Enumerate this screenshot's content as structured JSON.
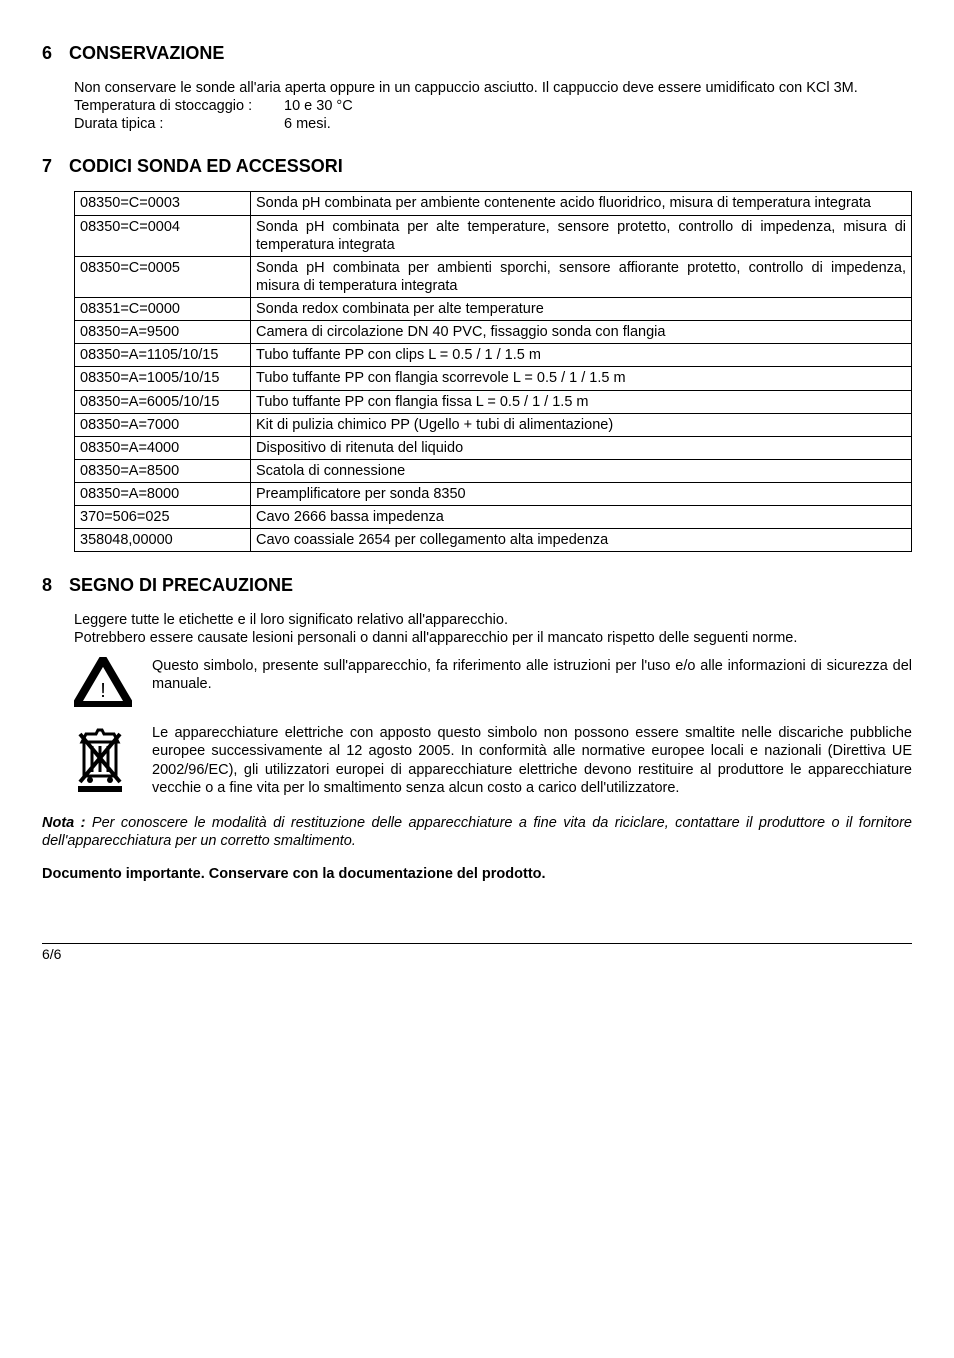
{
  "sections": {
    "s6": {
      "num": "6",
      "title": "CONSERVAZIONE",
      "intro": "Non conservare le sonde all'aria aperta oppure in un cappuccio asciutto. Il cappuccio deve essere umidificato con KCl 3M.",
      "rows": [
        {
          "label": "Temperatura di stoccaggio :",
          "value": "10 e 30 °C"
        },
        {
          "label": "Durata tipica :",
          "value": "6 mesi."
        }
      ]
    },
    "s7": {
      "num": "7",
      "title": "CODICI SONDA ED ACCESSORI",
      "table": [
        {
          "code": "08350=C=0003",
          "desc": "Sonda pH combinata per ambiente contenente acido fluoridrico, misura di temperatura integrata"
        },
        {
          "code": "08350=C=0004",
          "desc": "Sonda pH combinata per alte temperature, sensore protetto, controllo di impedenza, misura di temperatura integrata"
        },
        {
          "code": "08350=C=0005",
          "desc": "Sonda pH combinata per ambienti sporchi, sensore affiorante protetto, controllo di impedenza, misura di temperatura integrata"
        },
        {
          "code": "08351=C=0000",
          "desc": "Sonda redox combinata per alte temperature"
        },
        {
          "code": "08350=A=9500",
          "desc": "Camera di circolazione DN 40 PVC, fissaggio sonda con flangia"
        },
        {
          "code": "08350=A=1105/10/15",
          "desc": "Tubo tuffante PP con clips L = 0.5 / 1 / 1.5 m"
        },
        {
          "code": "08350=A=1005/10/15",
          "desc": "Tubo tuffante PP con flangia scorrevole L = 0.5 / 1 / 1.5 m"
        },
        {
          "code": "08350=A=6005/10/15",
          "desc": "Tubo tuffante PP con flangia fissa L = 0.5 / 1 / 1.5 m"
        },
        {
          "code": "08350=A=7000",
          "desc": "Kit di pulizia chimico PP (Ugello + tubi di alimentazione)"
        },
        {
          "code": "08350=A=4000",
          "desc": "Dispositivo di ritenuta del liquido"
        },
        {
          "code": "08350=A=8500",
          "desc": "Scatola di connessione"
        },
        {
          "code": "08350=A=8000",
          "desc": "Preamplificatore per sonda 8350"
        },
        {
          "code": "370=506=025",
          "desc": "Cavo 2666 bassa impedenza"
        },
        {
          "code": "358048,00000",
          "desc": "Cavo coassiale 2654 per collegamento alta impedenza"
        }
      ]
    },
    "s8": {
      "num": "8",
      "title": "SEGNO DI PRECAUZIONE",
      "p1": "Leggere tutte le etichette e il loro significato relativo all'apparecchio.",
      "p2": "Potrebbero essere causate lesioni personali o danni all'apparecchio per il mancato rispetto delle seguenti norme.",
      "warn_text": "Questo simbolo, presente sull'apparecchio, fa riferimento alle istruzioni per l'uso e/o alle informazioni di sicurezza del manuale.",
      "weee_text": "Le apparecchiature elettriche con apposto questo simbolo non possono essere smaltite nelle discariche pubbliche europee successivamente al 12 agosto 2005. In conformità alle normative europee locali e nazionali (Direttiva UE 2002/96/EC), gli utilizzatori europei di apparecchiature elettriche devono restituire al produttore le apparecchiature vecchie o a fine vita per lo smaltimento senza alcun costo a carico dell'utilizzatore.",
      "nota_label": "Nota :",
      "nota_text": " Per conoscere le modalità di restituzione delle apparecchiature a fine vita da riciclare, contattare il produttore o il fornitore dell'apparecchiatura per un corretto smaltimento.",
      "doc_imp": "Documento importante. Conservare con la documentazione del prodotto."
    }
  },
  "footer": "6/6"
}
